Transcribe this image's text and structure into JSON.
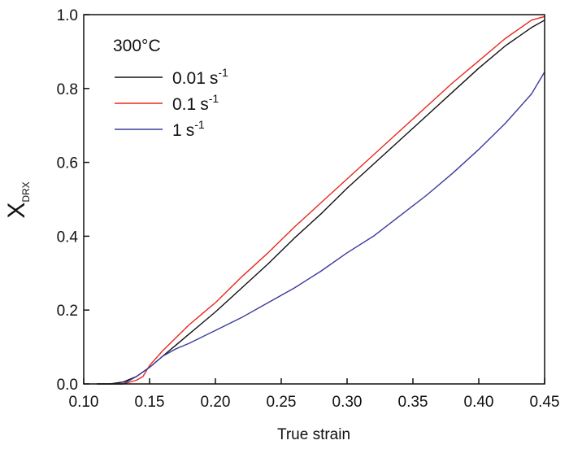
{
  "chart_data": {
    "type": "line",
    "xlabel": "True strain",
    "ylabel": {
      "main": "X",
      "sub": "DRX"
    },
    "xlim": [
      0.1,
      0.45
    ],
    "ylim": [
      0.0,
      1.0
    ],
    "xticks": [
      "0.10",
      "0.15",
      "0.20",
      "0.25",
      "0.30",
      "0.35",
      "0.40",
      "0.45"
    ],
    "yticks": [
      "0.0",
      "0.2",
      "0.4",
      "0.6",
      "0.8",
      "1.0"
    ],
    "grid": false,
    "legend_position": "top-left",
    "legend_title": {
      "value": "300",
      "unit": "°C"
    },
    "series": [
      {
        "label": {
          "value": "0.01",
          "unit": "s",
          "exponent": "-1"
        },
        "color": "#111111",
        "x": [
          0.11,
          0.12,
          0.13,
          0.14,
          0.15,
          0.16,
          0.17,
          0.18,
          0.19,
          0.2,
          0.22,
          0.24,
          0.26,
          0.28,
          0.3,
          0.32,
          0.34,
          0.36,
          0.38,
          0.4,
          0.42,
          0.44,
          0.45
        ],
        "y": [
          0.0,
          0.0,
          0.005,
          0.02,
          0.045,
          0.075,
          0.105,
          0.135,
          0.165,
          0.195,
          0.26,
          0.325,
          0.395,
          0.46,
          0.53,
          0.595,
          0.66,
          0.725,
          0.79,
          0.855,
          0.915,
          0.965,
          0.985
        ]
      },
      {
        "label": {
          "value": "0.1",
          "unit": "s",
          "exponent": "-1"
        },
        "color": "#e8281e",
        "x": [
          0.11,
          0.12,
          0.13,
          0.14,
          0.145,
          0.15,
          0.16,
          0.17,
          0.18,
          0.19,
          0.2,
          0.22,
          0.24,
          0.26,
          0.28,
          0.3,
          0.32,
          0.34,
          0.36,
          0.38,
          0.4,
          0.42,
          0.44,
          0.45
        ],
        "y": [
          0.0,
          0.0,
          0.0,
          0.01,
          0.02,
          0.05,
          0.09,
          0.125,
          0.16,
          0.19,
          0.22,
          0.29,
          0.355,
          0.425,
          0.49,
          0.555,
          0.62,
          0.685,
          0.75,
          0.815,
          0.875,
          0.935,
          0.985,
          0.995
        ]
      },
      {
        "label": {
          "value": "1",
          "unit": "s",
          "exponent": "-1"
        },
        "color": "#3b3b9a",
        "x": [
          0.11,
          0.12,
          0.13,
          0.14,
          0.15,
          0.16,
          0.17,
          0.18,
          0.2,
          0.22,
          0.24,
          0.26,
          0.28,
          0.3,
          0.32,
          0.34,
          0.36,
          0.38,
          0.4,
          0.42,
          0.44,
          0.45
        ],
        "y": [
          0.0,
          0.0,
          0.0,
          0.02,
          0.045,
          0.075,
          0.095,
          0.11,
          0.145,
          0.18,
          0.22,
          0.26,
          0.305,
          0.355,
          0.4,
          0.455,
          0.51,
          0.57,
          0.635,
          0.705,
          0.785,
          0.845
        ]
      }
    ]
  }
}
